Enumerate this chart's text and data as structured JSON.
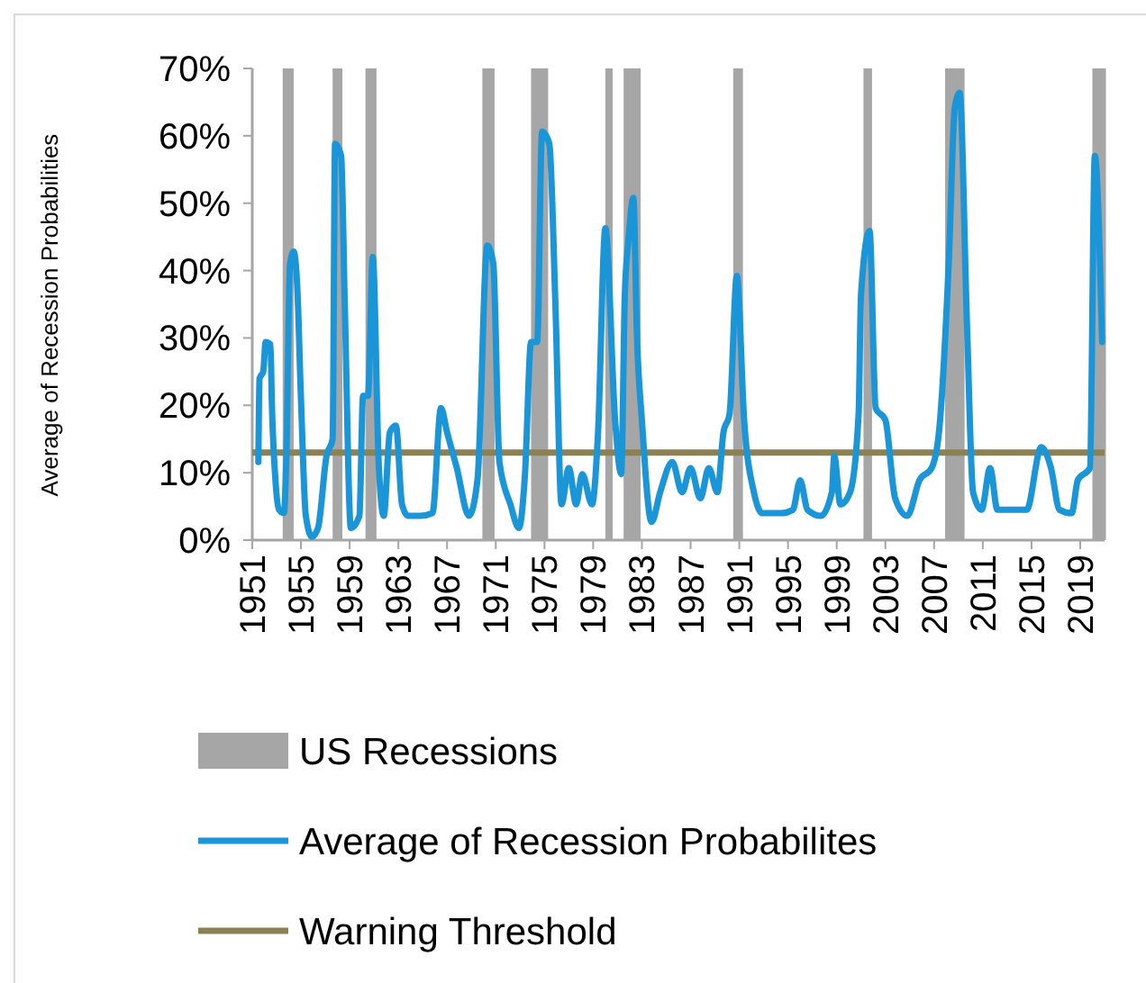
{
  "chart_data": {
    "type": "line",
    "ylabel": "Average of Recession Probabilities",
    "xlim": [
      1951,
      2021
    ],
    "xticks": [
      1951,
      1955,
      1959,
      1963,
      1967,
      1971,
      1975,
      1979,
      1983,
      1987,
      1991,
      1995,
      1999,
      2003,
      2007,
      2011,
      2015,
      2019
    ],
    "ylim": [
      0,
      70
    ],
    "yticks": [
      {
        "value": 0,
        "label": "0%"
      },
      {
        "value": 10,
        "label": "10%"
      },
      {
        "value": 20,
        "label": "20%"
      },
      {
        "value": 30,
        "label": "30%"
      },
      {
        "value": 40,
        "label": "40%"
      },
      {
        "value": 50,
        "label": "50%"
      },
      {
        "value": 60,
        "label": "60%"
      },
      {
        "value": 70,
        "label": "70%"
      }
    ],
    "grid": false,
    "legend": "bottom",
    "marker": "none",
    "line_style": "solid",
    "series": [
      {
        "name": "Average of Recession Probabilites",
        "color": "#1a96d8",
        "x": [
          1951.5,
          1951.6,
          1951.9,
          1952.1,
          1952.5,
          1952.6,
          1952.9,
          1953.2,
          1953.6,
          1953.8,
          1954.1,
          1954.4,
          1954.7,
          1955.0,
          1955.4,
          1955.9,
          1956.4,
          1957.1,
          1957.6,
          1957.8,
          1958.3,
          1958.6,
          1959.1,
          1959.8,
          1960.1,
          1960.5,
          1960.9,
          1961.4,
          1961.8,
          1962.3,
          1962.8,
          1963.3,
          1963.8,
          1964.8,
          1965.8,
          1966.5,
          1967.0,
          1967.8,
          1968.8,
          1969.5,
          1970.3,
          1970.8,
          1971.3,
          1972.2,
          1972.9,
          1973.4,
          1973.9,
          1974.4,
          1974.8,
          1975.4,
          1975.9,
          1976.4,
          1977.0,
          1977.6,
          1978.1,
          1978.9,
          1979.4,
          1980.0,
          1980.8,
          1981.3,
          1981.6,
          1981.9,
          1982.3,
          1982.6,
          1983.0,
          1983.8,
          1984.5,
          1985.5,
          1986.3,
          1987.0,
          1987.8,
          1988.5,
          1989.2,
          1989.7,
          1990.2,
          1990.8,
          1991.4,
          1992.2,
          1992.9,
          1994.4,
          1995.4,
          1996.0,
          1996.6,
          1997.7,
          1998.6,
          1998.8,
          1999.3,
          2000.1,
          2000.8,
          2001.0,
          2001.7,
          2002.2,
          2003.0,
          2003.8,
          2004.8,
          2005.8,
          2006.8,
          2007.4,
          2008.2,
          2008.7,
          2009.1,
          2009.7,
          2010.2,
          2010.9,
          2011.6,
          2012.2,
          2013.7,
          2014.6,
          2015.8,
          2016.6,
          2017.3,
          2018.3,
          2018.8,
          2019.8,
          2020.2,
          2020.8
        ],
        "values": [
          11.6,
          24,
          25,
          29.4,
          29,
          21,
          9,
          4.5,
          4,
          12.5,
          41,
          42.8,
          37.4,
          21,
          3.6,
          0.5,
          1.8,
          12.5,
          15,
          58.8,
          57,
          34.8,
          1.8,
          3.6,
          21.4,
          21.4,
          42,
          10.7,
          3.6,
          16,
          17,
          5.3,
          3.6,
          3.6,
          4,
          19.6,
          16,
          10.7,
          3.6,
          9,
          43.7,
          41,
          11.6,
          5.3,
          1.8,
          9.8,
          29.4,
          29.4,
          60.6,
          58.8,
          34.8,
          5.3,
          10.7,
          5.3,
          9.8,
          5.3,
          16,
          46.3,
          17.8,
          9.8,
          36.5,
          44.6,
          50.8,
          30,
          17.8,
          2.7,
          7.1,
          11.6,
          7.1,
          10.7,
          6.2,
          10.7,
          7.1,
          16,
          18.7,
          39.2,
          17.8,
          7.1,
          4,
          4,
          4.5,
          8.9,
          4.5,
          3.6,
          7.1,
          12.5,
          5.3,
          7.1,
          18.7,
          36.5,
          45.9,
          19.6,
          17.8,
          6.2,
          3.6,
          8.9,
          10.7,
          16,
          41,
          64.2,
          66.4,
          32,
          7.1,
          4.5,
          10.7,
          4.5,
          4.5,
          4.5,
          13.8,
          10.7,
          4.5,
          4,
          8.9,
          10.7,
          57,
          29.4
        ]
      }
    ],
    "ref_lines": [
      {
        "axis": "y",
        "value": 13,
        "label": "Warning Threshold",
        "color": "#8c8154",
        "line_style": "solid"
      }
    ],
    "bands": [
      {
        "axis": "x",
        "from": 1953.5,
        "to": 1954.4,
        "label": "US Recessions",
        "color": "#a6a6a6"
      },
      {
        "axis": "x",
        "from": 1957.6,
        "to": 1958.4,
        "color": "#a6a6a6"
      },
      {
        "axis": "x",
        "from": 1960.3,
        "to": 1961.2,
        "color": "#a6a6a6"
      },
      {
        "axis": "x",
        "from": 1969.9,
        "to": 1970.9,
        "color": "#a6a6a6"
      },
      {
        "axis": "x",
        "from": 1973.9,
        "to": 1975.3,
        "color": "#a6a6a6"
      },
      {
        "axis": "x",
        "from": 1980.0,
        "to": 1980.6,
        "color": "#a6a6a6"
      },
      {
        "axis": "x",
        "from": 1981.5,
        "to": 1982.9,
        "color": "#a6a6a6"
      },
      {
        "axis": "x",
        "from": 1990.5,
        "to": 1991.3,
        "color": "#a6a6a6"
      },
      {
        "axis": "x",
        "from": 2001.2,
        "to": 2001.9,
        "color": "#a6a6a6"
      },
      {
        "axis": "x",
        "from": 2007.9,
        "to": 2009.5,
        "color": "#a6a6a6"
      },
      {
        "axis": "x",
        "from": 2020.0,
        "to": 2021.0,
        "color": "#a6a6a6"
      }
    ]
  }
}
